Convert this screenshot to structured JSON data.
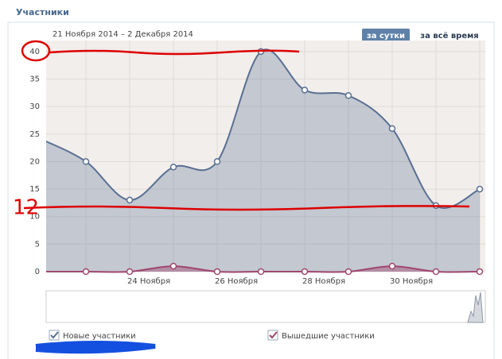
{
  "header": {
    "title": "Участники",
    "period": "21 Ноября 2014 – 2 Декабря 2014",
    "buttons": [
      "за сутки",
      "за всё время"
    ]
  },
  "chart_data": {
    "type": "area",
    "categories": [
      null,
      null,
      "24 Ноября",
      null,
      "26 Ноября",
      null,
      "28 Ноября",
      null,
      "30 Ноября",
      null,
      null
    ],
    "series": [
      {
        "name": "Новые участники",
        "color": "#5a6f91",
        "values": [
          24,
          20,
          13,
          19,
          20,
          40,
          33,
          32,
          26,
          12,
          15
        ]
      },
      {
        "name": "Вышедшие участники",
        "color": "#a0466e",
        "values": [
          0,
          0,
          0,
          1,
          0,
          0,
          0,
          0,
          1,
          0,
          0
        ]
      }
    ],
    "ylim": [
      0,
      42
    ],
    "yticks": [
      0,
      5,
      10,
      15,
      20,
      25,
      30,
      35,
      40
    ],
    "grid": true,
    "annotations": [
      "12"
    ]
  }
}
